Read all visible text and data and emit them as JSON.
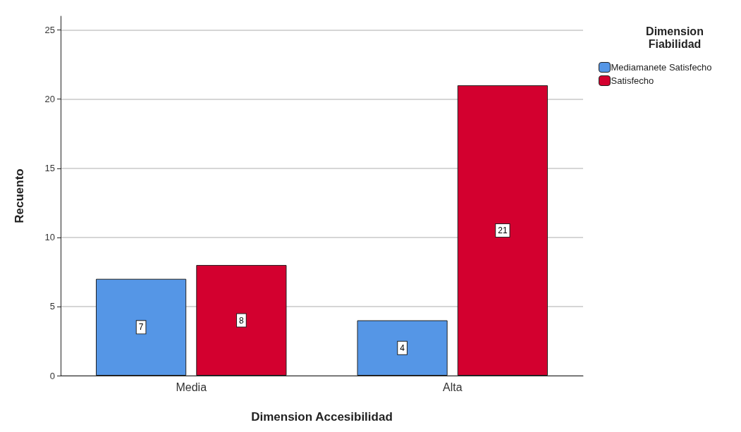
{
  "chart_data": {
    "type": "bar",
    "xlabel": "Dimension Accesibilidad",
    "ylabel": "Recuento",
    "legend_title": "Dimension\nFiabilidad",
    "categories": [
      "Media",
      "Alta"
    ],
    "series": [
      {
        "name": "Mediamanete Satisfecho",
        "color": "#5596e6",
        "values": [
          7,
          4
        ]
      },
      {
        "name": "Satisfecho",
        "color": "#d3002f",
        "values": [
          8,
          21
        ]
      }
    ],
    "ylim": [
      0,
      26
    ],
    "yticks": [
      0,
      5,
      10,
      15,
      20,
      25
    ],
    "grid": "y",
    "legend": "top right",
    "data_labels": true
  }
}
